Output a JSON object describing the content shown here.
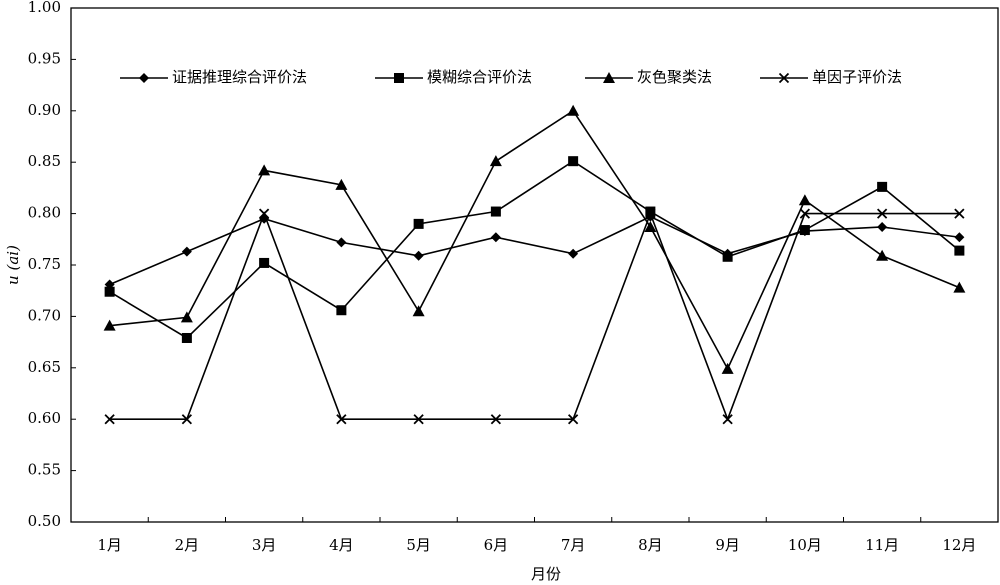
{
  "chart_data": {
    "type": "line",
    "x_label": "月份",
    "y_label": "u (ai)",
    "categories": [
      "1月",
      "2月",
      "3月",
      "4月",
      "5月",
      "6月",
      "7月",
      "8月",
      "9月",
      "10月",
      "11月",
      "12月"
    ],
    "series": [
      {
        "name": "证据推理综合评价法",
        "color": "#000000",
        "marker": "diamond",
        "values": [
          0.731,
          0.763,
          0.795,
          0.772,
          0.759,
          0.777,
          0.761,
          0.797,
          0.761,
          0.783,
          0.787,
          0.777
        ]
      },
      {
        "name": "模糊综合评价法",
        "color": "#000000",
        "marker": "square",
        "values": [
          0.724,
          0.679,
          0.752,
          0.706,
          0.79,
          0.802,
          0.851,
          0.802,
          0.758,
          0.784,
          0.826,
          0.764
        ]
      },
      {
        "name": "灰色聚类法",
        "color": "#000000",
        "marker": "triangle",
        "values": [
          0.691,
          0.699,
          0.842,
          0.828,
          0.705,
          0.851,
          0.9,
          0.787,
          0.649,
          0.813,
          0.759,
          0.728
        ]
      },
      {
        "name": "单因子评价法",
        "color": "#000000",
        "marker": "x",
        "values": [
          0.6,
          0.6,
          0.8,
          0.6,
          0.6,
          0.6,
          0.6,
          0.8,
          0.6,
          0.8,
          0.8,
          0.8
        ]
      }
    ],
    "ylim": [
      0.5,
      1.0
    ],
    "yticks": [
      {
        "value": 0.5,
        "label": "0.50"
      },
      {
        "value": 0.55,
        "label": "0.55"
      },
      {
        "value": 0.6,
        "label": "0.60"
      },
      {
        "value": 0.65,
        "label": "0.65"
      },
      {
        "value": 0.7,
        "label": "0.70"
      },
      {
        "value": 0.75,
        "label": "0.75"
      },
      {
        "value": 0.8,
        "label": "0.80"
      },
      {
        "value": 0.85,
        "label": "0.85"
      },
      {
        "value": 0.9,
        "label": "0.90"
      },
      {
        "value": 0.95,
        "label": "0.95"
      },
      {
        "value": 1.0,
        "label": "1.00"
      }
    ],
    "grid": false,
    "legend": "top"
  }
}
